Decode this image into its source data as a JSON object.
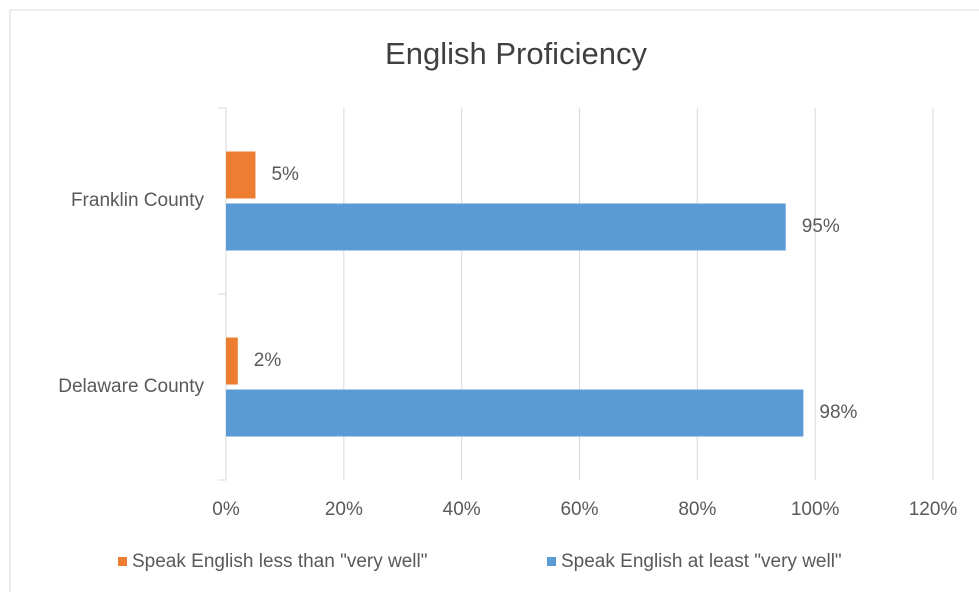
{
  "chart_data": {
    "type": "hbar",
    "title": "English Proficiency",
    "categories": [
      "Franklin County",
      "Delaware County"
    ],
    "series": [
      {
        "name": "Speak English less than \"very well\"",
        "color": "#ed7d31",
        "values": [
          5,
          2
        ],
        "value_labels": [
          "5%",
          "2%"
        ]
      },
      {
        "name": "Speak English at least \"very well\"",
        "color": "#5b9bd5",
        "values": [
          95,
          98
        ],
        "value_labels": [
          "95%",
          "98%"
        ]
      }
    ],
    "xlim": [
      0,
      120
    ],
    "xticks": [
      {
        "value": 0,
        "label": "0%"
      },
      {
        "value": 20,
        "label": "20%"
      },
      {
        "value": 40,
        "label": "40%"
      },
      {
        "value": 60,
        "label": "60%"
      },
      {
        "value": 80,
        "label": "80%"
      },
      {
        "value": 100,
        "label": "100%"
      },
      {
        "value": 120,
        "label": "120%"
      }
    ],
    "grid": true,
    "legend": "bottom"
  }
}
